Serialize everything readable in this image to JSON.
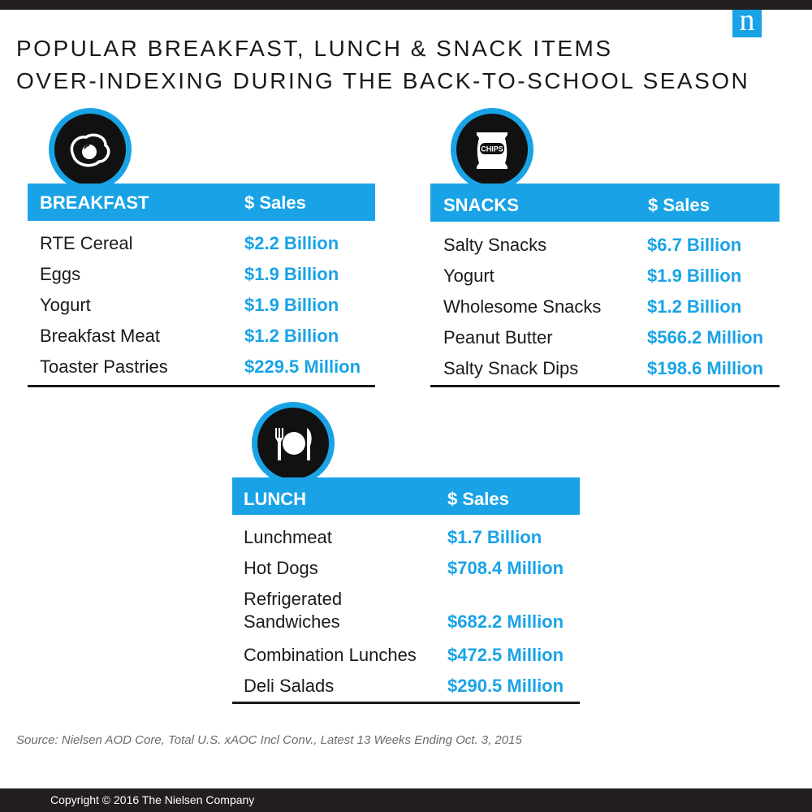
{
  "title": {
    "line1": "POPULAR BREAKFAST, LUNCH & SNACK ITEMS",
    "line2": "OVER-INDEXING DURING THE BACK-TO-SCHOOL SEASON"
  },
  "logo": {
    "letter": "n"
  },
  "colors": {
    "accent": "#19a3e6",
    "dark": "#231f20",
    "text": "#1a1a1a",
    "muted": "#6b6b6b"
  },
  "breakfast": {
    "icon": "fried-egg-icon",
    "header": "BREAKFAST",
    "sales_header": "$ Sales",
    "rows": [
      {
        "item": "RTE Cereal",
        "value": "$2.2 Billion"
      },
      {
        "item": "Eggs",
        "value": "$1.9 Billion"
      },
      {
        "item": "Yogurt",
        "value": "$1.9 Billion"
      },
      {
        "item": "Breakfast Meat",
        "value": "$1.2 Billion"
      },
      {
        "item": "Toaster Pastries",
        "value": "$229.5 Million"
      }
    ]
  },
  "snacks": {
    "icon": "chips-bag-icon",
    "icon_label": "CHIPS",
    "header": "SNACKS",
    "sales_header": "$ Sales",
    "rows": [
      {
        "item": "Salty Snacks",
        "value": "$6.7 Billion"
      },
      {
        "item": "Yogurt",
        "value": "$1.9 Billion"
      },
      {
        "item": "Wholesome Snacks",
        "value": "$1.2 Billion"
      },
      {
        "item": "Peanut Butter",
        "value": "$566.2 Million"
      },
      {
        "item": "Salty Snack Dips",
        "value": "$198.6 Million"
      }
    ]
  },
  "lunch": {
    "icon": "plate-fork-knife-icon",
    "header": "LUNCH",
    "sales_header": "$ Sales",
    "rows": [
      {
        "item": "Lunchmeat",
        "value": "$1.7 Billion"
      },
      {
        "item": "Hot Dogs",
        "value": "$708.4 Million"
      },
      {
        "item": "Refrigerated",
        "item2": "Sandwiches",
        "value": "$682.2 Million"
      },
      {
        "item": "Combination Lunches",
        "value": "$472.5 Million"
      },
      {
        "item": "Deli Salads",
        "value": "$290.5 Million"
      }
    ]
  },
  "source": "Source: Nielsen AOD Core, Total U.S. xAOC Incl Conv., Latest 13 Weeks Ending Oct. 3, 2015",
  "copyright": "Copyright © 2016 The Nielsen Company"
}
